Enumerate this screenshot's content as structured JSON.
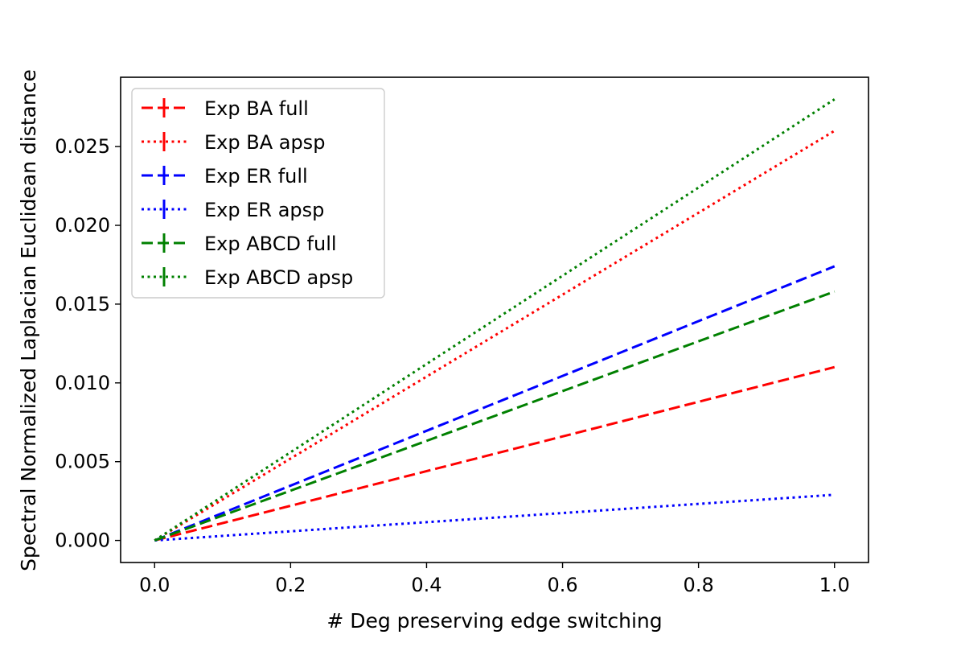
{
  "chart_data": {
    "type": "line",
    "title": "",
    "xlabel": "# Deg preserving edge switching",
    "ylabel": "Spectral Normalized Laplacian Euclidean distance",
    "xlim": [
      -0.05,
      1.05
    ],
    "ylim": [
      -0.0014,
      0.0294
    ],
    "x_ticks": [
      0.0,
      0.2,
      0.4,
      0.6,
      0.8,
      1.0
    ],
    "x_tick_labels": [
      "0.0",
      "0.2",
      "0.4",
      "0.6",
      "0.8",
      "1.0"
    ],
    "y_ticks": [
      0.0,
      0.005,
      0.01,
      0.015,
      0.02,
      0.025
    ],
    "y_tick_labels": [
      "0.000",
      "0.005",
      "0.010",
      "0.015",
      "0.020",
      "0.025"
    ],
    "grid": false,
    "legend_position": "top-left",
    "x": [
      0.0,
      1.0
    ],
    "series": [
      {
        "name": "Exp BA full",
        "values": [
          0.0,
          0.011
        ],
        "color": "#ff0000",
        "linestyle": "dashed"
      },
      {
        "name": "Exp BA apsp",
        "values": [
          0.0,
          0.026
        ],
        "color": "#ff0000",
        "linestyle": "dotted"
      },
      {
        "name": "Exp ER full",
        "values": [
          0.0,
          0.0174
        ],
        "color": "#0000ff",
        "linestyle": "dashed"
      },
      {
        "name": "Exp ER apsp",
        "values": [
          0.0,
          0.0029
        ],
        "color": "#0000ff",
        "linestyle": "dotted"
      },
      {
        "name": "Exp ABCD full",
        "values": [
          0.0,
          0.0158
        ],
        "color": "#008000",
        "linestyle": "dashed"
      },
      {
        "name": "Exp ABCD apsp",
        "values": [
          0.0,
          0.028
        ],
        "color": "#008000",
        "linestyle": "dotted"
      }
    ]
  }
}
